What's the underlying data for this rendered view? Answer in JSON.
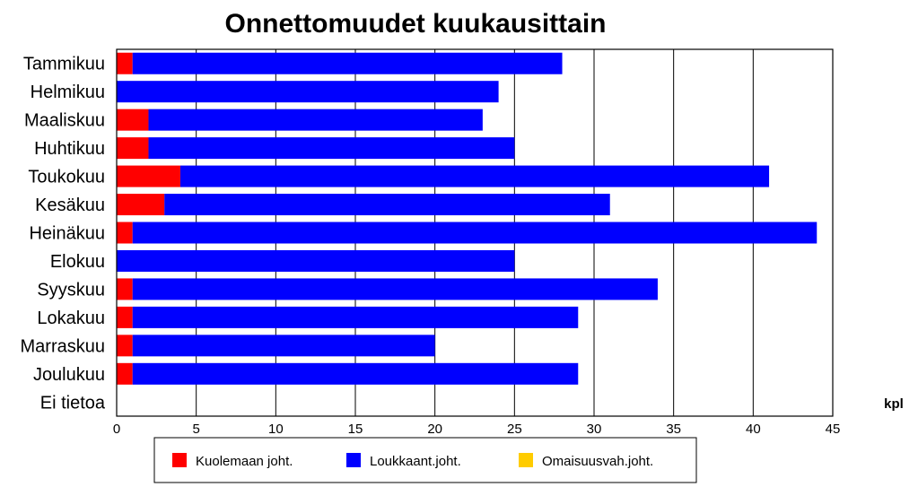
{
  "chart_data": {
    "type": "bar",
    "orientation": "horizontal",
    "stacked": true,
    "title": "Onnettomuudet kuukausittain",
    "xlabel": "kpl",
    "categories": [
      "Tammikuu",
      "Helmikuu",
      "Maaliskuu",
      "Huhtikuu",
      "Toukokuu",
      "Kesäkuu",
      "Heinäkuu",
      "Elokuu",
      "Syyskuu",
      "Lokakuu",
      "Marraskuu",
      "Joulukuu",
      "Ei tietoa"
    ],
    "series": [
      {
        "name": "Kuolemaan joht.",
        "color": "#ff0000",
        "values": [
          1,
          0,
          2,
          2,
          4,
          3,
          1,
          0,
          1,
          1,
          1,
          1,
          0
        ]
      },
      {
        "name": "Loukkaant.joht.",
        "color": "#0000ff",
        "values": [
          27,
          24,
          21,
          23,
          37,
          28,
          43,
          25,
          33,
          28,
          19,
          28,
          0
        ]
      },
      {
        "name": "Omaisuusvah.joht.",
        "color": "#ffcc00",
        "values": [
          0,
          0,
          0,
          0,
          0,
          0,
          0,
          0,
          0,
          0,
          0,
          0,
          0
        ]
      }
    ],
    "xlim": [
      0,
      45
    ],
    "xticks": [
      "0",
      "5",
      "10",
      "15",
      "20",
      "25",
      "30",
      "35",
      "40",
      "45"
    ],
    "grid": "vertical",
    "legend_position": "bottom"
  }
}
